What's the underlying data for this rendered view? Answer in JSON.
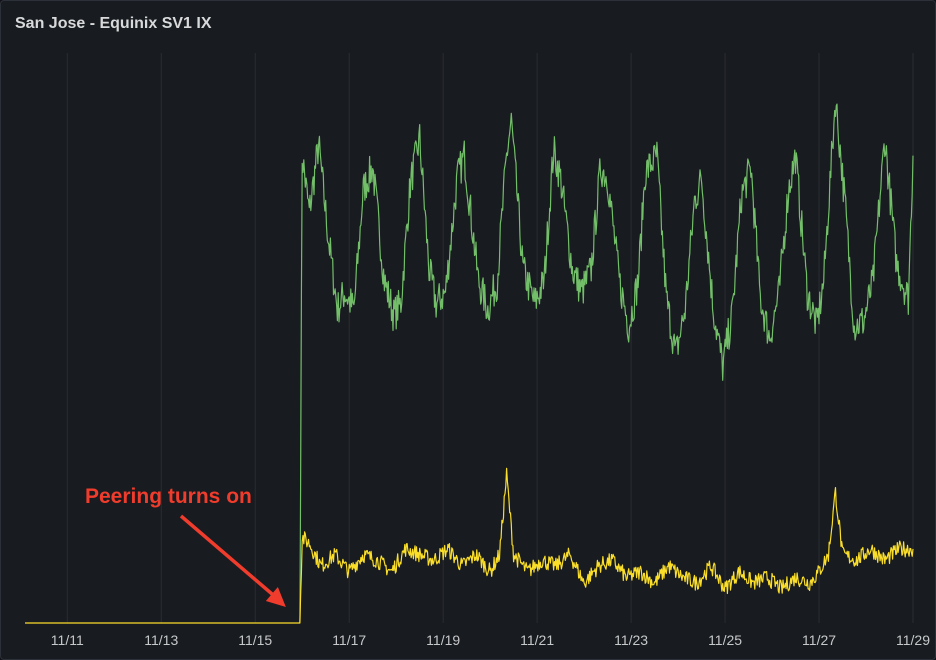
{
  "panel": {
    "title": "San Jose - Equinix SV1 IX"
  },
  "colors": {
    "series_green": "#73bf69",
    "series_yellow": "#fade2a",
    "grid": "#2a2d33",
    "annotation": "#f03c2c"
  },
  "chart_data": {
    "type": "line",
    "title": "San Jose - Equinix SV1 IX",
    "xlabel": "",
    "ylabel": "",
    "x_ticks": [
      "11/11",
      "11/13",
      "11/15",
      "11/17",
      "11/19",
      "11/21",
      "11/23",
      "11/25",
      "11/27",
      "11/29"
    ],
    "x_range_days": [
      10.1,
      29.0
    ],
    "ylim": [
      0,
      100
    ],
    "grid": true,
    "legend": "none",
    "series": [
      {
        "color": "#73bf69",
        "points": [
          [
            15.95,
            0
          ],
          [
            16.0,
            82
          ],
          [
            16.15,
            72
          ],
          [
            16.35,
            84
          ],
          [
            16.55,
            68
          ],
          [
            16.75,
            55
          ],
          [
            16.9,
            58
          ],
          [
            17.1,
            55
          ],
          [
            17.3,
            76
          ],
          [
            17.5,
            80
          ],
          [
            17.75,
            60
          ],
          [
            17.95,
            54
          ],
          [
            18.1,
            56
          ],
          [
            18.3,
            77
          ],
          [
            18.5,
            85
          ],
          [
            18.7,
            62
          ],
          [
            18.85,
            56
          ],
          [
            19.05,
            58
          ],
          [
            19.3,
            78
          ],
          [
            19.45,
            82
          ],
          [
            19.75,
            60
          ],
          [
            19.95,
            55
          ],
          [
            20.15,
            60
          ],
          [
            20.35,
            82
          ],
          [
            20.45,
            88
          ],
          [
            20.7,
            62
          ],
          [
            20.95,
            56
          ],
          [
            21.15,
            60
          ],
          [
            21.35,
            83
          ],
          [
            21.5,
            78
          ],
          [
            21.75,
            62
          ],
          [
            21.95,
            58
          ],
          [
            22.15,
            62
          ],
          [
            22.35,
            80
          ],
          [
            22.5,
            78
          ],
          [
            22.75,
            60
          ],
          [
            22.95,
            52
          ],
          [
            23.15,
            60
          ],
          [
            23.3,
            79
          ],
          [
            23.55,
            82
          ],
          [
            23.75,
            57
          ],
          [
            23.95,
            47
          ],
          [
            24.15,
            55
          ],
          [
            24.35,
            74
          ],
          [
            24.5,
            78
          ],
          [
            24.75,
            55
          ],
          [
            24.95,
            45
          ],
          [
            25.15,
            54
          ],
          [
            25.35,
            75
          ],
          [
            25.55,
            80
          ],
          [
            25.75,
            57
          ],
          [
            25.95,
            50
          ],
          [
            26.15,
            58
          ],
          [
            26.35,
            76
          ],
          [
            26.5,
            82
          ],
          [
            26.75,
            58
          ],
          [
            26.95,
            52
          ],
          [
            27.1,
            60
          ],
          [
            27.35,
            92
          ],
          [
            27.55,
            74
          ],
          [
            27.75,
            52
          ],
          [
            27.95,
            53
          ],
          [
            28.15,
            60
          ],
          [
            28.4,
            85
          ],
          [
            28.65,
            63
          ],
          [
            28.9,
            57
          ],
          [
            29.0,
            82
          ]
        ]
      },
      {
        "color": "#fade2a",
        "points": [
          [
            10.1,
            0
          ],
          [
            15.95,
            0
          ],
          [
            16.0,
            15
          ],
          [
            16.15,
            14
          ],
          [
            16.4,
            10
          ],
          [
            16.7,
            12
          ],
          [
            17.0,
            9
          ],
          [
            17.3,
            12
          ],
          [
            17.6,
            11
          ],
          [
            17.9,
            9
          ],
          [
            18.2,
            13
          ],
          [
            18.5,
            12
          ],
          [
            18.8,
            11
          ],
          [
            19.1,
            13
          ],
          [
            19.4,
            10
          ],
          [
            19.7,
            12
          ],
          [
            20.0,
            9
          ],
          [
            20.2,
            12
          ],
          [
            20.35,
            26
          ],
          [
            20.5,
            12
          ],
          [
            20.8,
            9
          ],
          [
            21.1,
            11
          ],
          [
            21.4,
            10
          ],
          [
            21.7,
            12
          ],
          [
            22.0,
            7
          ],
          [
            22.3,
            10
          ],
          [
            22.6,
            11
          ],
          [
            22.9,
            8
          ],
          [
            23.2,
            9
          ],
          [
            23.5,
            7
          ],
          [
            23.8,
            10
          ],
          [
            24.1,
            8
          ],
          [
            24.4,
            7
          ],
          [
            24.7,
            10
          ],
          [
            25.0,
            6
          ],
          [
            25.3,
            9
          ],
          [
            25.6,
            7
          ],
          [
            25.9,
            8
          ],
          [
            26.2,
            6
          ],
          [
            26.5,
            8
          ],
          [
            26.8,
            7
          ],
          [
            27.0,
            9
          ],
          [
            27.2,
            12
          ],
          [
            27.35,
            23
          ],
          [
            27.5,
            12
          ],
          [
            27.8,
            11
          ],
          [
            28.1,
            13
          ],
          [
            28.4,
            11
          ],
          [
            28.7,
            13
          ],
          [
            29.0,
            13
          ]
        ]
      }
    ],
    "annotations": [
      {
        "text": "Peering turns on",
        "arrow_to": [
          15.95,
          0
        ]
      }
    ]
  }
}
